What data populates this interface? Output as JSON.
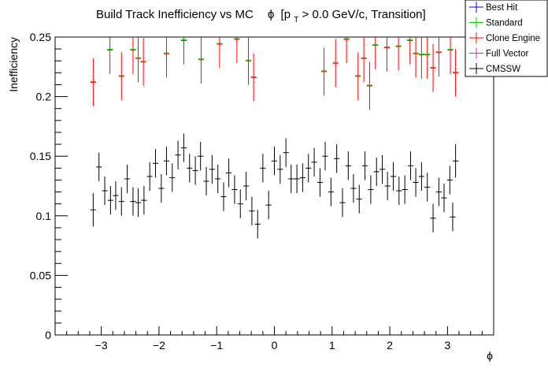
{
  "chart_data": {
    "type": "scatter",
    "title": {
      "main": "Build Track Inefficiency vs MC",
      "phi_symbol": "ϕ",
      "open": "[p",
      "subscript": "T",
      "rest": " > 0.0 GeV/c, Transition]"
    },
    "xlabel": "ϕ",
    "ylabel": "Inefficiency",
    "xlim": [
      -3.8,
      3.8
    ],
    "ylim": [
      0,
      0.25
    ],
    "x_ticks": [
      {
        "value": -3,
        "label": "−3"
      },
      {
        "value": -2,
        "label": "−2"
      },
      {
        "value": -1,
        "label": "−1"
      },
      {
        "value": 0,
        "label": "0"
      },
      {
        "value": 1,
        "label": "1"
      },
      {
        "value": 2,
        "label": "2"
      },
      {
        "value": 3,
        "label": "3"
      }
    ],
    "y_ticks": [
      {
        "value": 0,
        "label": "0"
      },
      {
        "value": 0.05,
        "label": "0.05"
      },
      {
        "value": 0.1,
        "label": "0.1"
      },
      {
        "value": 0.15,
        "label": "0.15"
      },
      {
        "value": 0.2,
        "label": "0.2"
      },
      {
        "value": 0.25,
        "label": "0.25"
      }
    ],
    "bin_half_width": 0.049,
    "legend": {
      "position": "top-right",
      "entries": [
        {
          "name": "Best Hit",
          "color": "#0000ff"
        },
        {
          "name": "Standard",
          "color": "#00cc00"
        },
        {
          "name": "Clone Engine",
          "color": "#ff0000"
        },
        {
          "name": "Full Vector",
          "color": "#ff00ff"
        },
        {
          "name": "CMSSW",
          "color": "#000000"
        }
      ]
    },
    "series": [
      {
        "name": "Clone Engine",
        "color": "#ff0000",
        "overlay_color": "#00cc00",
        "points": [
          {
            "x": -3.14,
            "y": 0.212,
            "err": 0.02
          },
          {
            "x": -2.85,
            "y": 0.239,
            "err": 0.02
          },
          {
            "x": -2.65,
            "y": 0.217,
            "err": 0.02
          },
          {
            "x": -2.45,
            "y": 0.239,
            "err": 0.02
          },
          {
            "x": -2.36,
            "y": 0.232,
            "err": 0.02
          },
          {
            "x": -2.27,
            "y": 0.229,
            "err": 0.02
          },
          {
            "x": -1.87,
            "y": 0.236,
            "err": 0.02
          },
          {
            "x": -1.57,
            "y": 0.247,
            "err": 0.02
          },
          {
            "x": -1.27,
            "y": 0.231,
            "err": 0.02
          },
          {
            "x": -0.95,
            "y": 0.244,
            "err": 0.02
          },
          {
            "x": -0.65,
            "y": 0.248,
            "err": 0.02
          },
          {
            "x": -0.45,
            "y": 0.23,
            "err": 0.02
          },
          {
            "x": -0.36,
            "y": 0.216,
            "err": 0.02
          },
          {
            "x": 0.86,
            "y": 0.221,
            "err": 0.02
          },
          {
            "x": 1.06,
            "y": 0.228,
            "err": 0.02
          },
          {
            "x": 1.25,
            "y": 0.248,
            "err": 0.02
          },
          {
            "x": 1.45,
            "y": 0.217,
            "err": 0.02
          },
          {
            "x": 1.55,
            "y": 0.232,
            "err": 0.02
          },
          {
            "x": 1.65,
            "y": 0.209,
            "err": 0.02
          },
          {
            "x": 1.75,
            "y": 0.243,
            "err": 0.02
          },
          {
            "x": 1.95,
            "y": 0.241,
            "err": 0.02
          },
          {
            "x": 2.15,
            "y": 0.242,
            "err": 0.02
          },
          {
            "x": 2.35,
            "y": 0.247,
            "err": 0.02
          },
          {
            "x": 2.45,
            "y": 0.236,
            "err": 0.02
          },
          {
            "x": 2.55,
            "y": 0.235,
            "err": 0.02
          },
          {
            "x": 2.65,
            "y": 0.235,
            "err": 0.02
          },
          {
            "x": 2.75,
            "y": 0.224,
            "err": 0.02
          },
          {
            "x": 2.85,
            "y": 0.237,
            "err": 0.02
          },
          {
            "x": 3.05,
            "y": 0.239,
            "err": 0.02
          },
          {
            "x": 3.14,
            "y": 0.22,
            "err": 0.02
          }
        ]
      },
      {
        "name": "CMSSW",
        "color": "#000000",
        "points": [
          {
            "x": -3.14,
            "y": 0.105,
            "err": 0.014
          },
          {
            "x": -3.04,
            "y": 0.141,
            "err": 0.012
          },
          {
            "x": -2.94,
            "y": 0.121,
            "err": 0.012
          },
          {
            "x": -2.84,
            "y": 0.113,
            "err": 0.012
          },
          {
            "x": -2.75,
            "y": 0.117,
            "err": 0.012
          },
          {
            "x": -2.65,
            "y": 0.112,
            "err": 0.012
          },
          {
            "x": -2.55,
            "y": 0.131,
            "err": 0.012
          },
          {
            "x": -2.45,
            "y": 0.112,
            "err": 0.012
          },
          {
            "x": -2.36,
            "y": 0.111,
            "err": 0.012
          },
          {
            "x": -2.26,
            "y": 0.113,
            "err": 0.012
          },
          {
            "x": -2.16,
            "y": 0.133,
            "err": 0.012
          },
          {
            "x": -2.06,
            "y": 0.144,
            "err": 0.012
          },
          {
            "x": -1.96,
            "y": 0.123,
            "err": 0.012
          },
          {
            "x": -1.87,
            "y": 0.146,
            "err": 0.012
          },
          {
            "x": -1.77,
            "y": 0.132,
            "err": 0.012
          },
          {
            "x": -1.67,
            "y": 0.151,
            "err": 0.012
          },
          {
            "x": -1.57,
            "y": 0.157,
            "err": 0.012
          },
          {
            "x": -1.47,
            "y": 0.14,
            "err": 0.012
          },
          {
            "x": -1.37,
            "y": 0.138,
            "err": 0.012
          },
          {
            "x": -1.28,
            "y": 0.15,
            "err": 0.012
          },
          {
            "x": -1.18,
            "y": 0.129,
            "err": 0.012
          },
          {
            "x": -1.08,
            "y": 0.139,
            "err": 0.012
          },
          {
            "x": -0.98,
            "y": 0.131,
            "err": 0.012
          },
          {
            "x": -0.88,
            "y": 0.116,
            "err": 0.012
          },
          {
            "x": -0.79,
            "y": 0.136,
            "err": 0.012
          },
          {
            "x": -0.69,
            "y": 0.122,
            "err": 0.012
          },
          {
            "x": -0.59,
            "y": 0.11,
            "err": 0.012
          },
          {
            "x": -0.49,
            "y": 0.125,
            "err": 0.012
          },
          {
            "x": -0.39,
            "y": 0.104,
            "err": 0.012
          },
          {
            "x": -0.29,
            "y": 0.093,
            "err": 0.012
          },
          {
            "x": -0.2,
            "y": 0.14,
            "err": 0.012
          },
          {
            "x": -0.1,
            "y": 0.109,
            "err": 0.012
          },
          {
            "x": 0.0,
            "y": 0.146,
            "err": 0.012
          },
          {
            "x": 0.1,
            "y": 0.139,
            "err": 0.012
          },
          {
            "x": 0.2,
            "y": 0.153,
            "err": 0.012
          },
          {
            "x": 0.29,
            "y": 0.131,
            "err": 0.012
          },
          {
            "x": 0.39,
            "y": 0.131,
            "err": 0.012
          },
          {
            "x": 0.49,
            "y": 0.132,
            "err": 0.012
          },
          {
            "x": 0.59,
            "y": 0.14,
            "err": 0.012
          },
          {
            "x": 0.69,
            "y": 0.145,
            "err": 0.012
          },
          {
            "x": 0.79,
            "y": 0.128,
            "err": 0.012
          },
          {
            "x": 0.88,
            "y": 0.15,
            "err": 0.012
          },
          {
            "x": 0.98,
            "y": 0.12,
            "err": 0.012
          },
          {
            "x": 1.08,
            "y": 0.148,
            "err": 0.012
          },
          {
            "x": 1.18,
            "y": 0.111,
            "err": 0.012
          },
          {
            "x": 1.28,
            "y": 0.142,
            "err": 0.012
          },
          {
            "x": 1.37,
            "y": 0.123,
            "err": 0.012
          },
          {
            "x": 1.47,
            "y": 0.114,
            "err": 0.012
          },
          {
            "x": 1.57,
            "y": 0.142,
            "err": 0.012
          },
          {
            "x": 1.67,
            "y": 0.122,
            "err": 0.012
          },
          {
            "x": 1.77,
            "y": 0.137,
            "err": 0.012
          },
          {
            "x": 1.87,
            "y": 0.139,
            "err": 0.012
          },
          {
            "x": 1.96,
            "y": 0.125,
            "err": 0.012
          },
          {
            "x": 2.06,
            "y": 0.133,
            "err": 0.012
          },
          {
            "x": 2.16,
            "y": 0.121,
            "err": 0.012
          },
          {
            "x": 2.26,
            "y": 0.122,
            "err": 0.012
          },
          {
            "x": 2.36,
            "y": 0.142,
            "err": 0.012
          },
          {
            "x": 2.45,
            "y": 0.128,
            "err": 0.012
          },
          {
            "x": 2.55,
            "y": 0.133,
            "err": 0.012
          },
          {
            "x": 2.65,
            "y": 0.124,
            "err": 0.012
          },
          {
            "x": 2.75,
            "y": 0.098,
            "err": 0.012
          },
          {
            "x": 2.85,
            "y": 0.12,
            "err": 0.012
          },
          {
            "x": 2.94,
            "y": 0.115,
            "err": 0.012
          },
          {
            "x": 3.04,
            "y": 0.13,
            "err": 0.012
          },
          {
            "x": 3.14,
            "y": 0.146,
            "err": 0.014
          },
          {
            "x": 3.09,
            "y": 0.099,
            "err": 0.012
          }
        ]
      }
    ]
  }
}
